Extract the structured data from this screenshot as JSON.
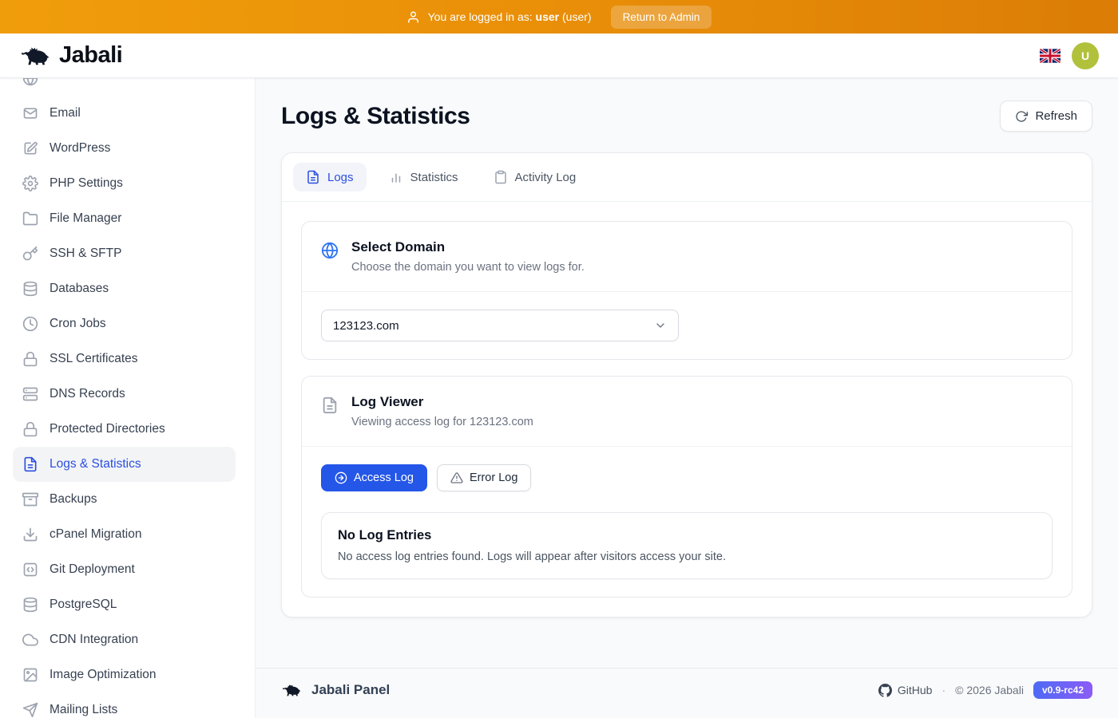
{
  "topbar": {
    "prefix": "You are logged in as:",
    "username": "user",
    "role": "(user)",
    "return_label": "Return to Admin",
    "user_icon": "user",
    "bg_gradient": [
      "#f09d0b",
      "#db7d06"
    ]
  },
  "header": {
    "brand": "Jabali",
    "logo_icon": "boar",
    "language_flag_icon": "uk-flag",
    "avatar_letter": "U",
    "avatar_color": "#b2c13c"
  },
  "sidebar": {
    "items": [
      {
        "id": "partial-top",
        "icon": "globe",
        "label": "",
        "partial": true
      },
      {
        "id": "email",
        "icon": "mail",
        "label": "Email"
      },
      {
        "id": "wordpress",
        "icon": "edit",
        "label": "WordPress"
      },
      {
        "id": "php-settings",
        "icon": "settings",
        "label": "PHP Settings"
      },
      {
        "id": "file-manager",
        "icon": "folder",
        "label": "File Manager"
      },
      {
        "id": "ssh-sftp",
        "icon": "key",
        "label": "SSH & SFTP"
      },
      {
        "id": "databases",
        "icon": "database",
        "label": "Databases"
      },
      {
        "id": "cron-jobs",
        "icon": "clock",
        "label": "Cron Jobs"
      },
      {
        "id": "ssl-certificates",
        "icon": "lock",
        "label": "SSL Certificates"
      },
      {
        "id": "dns-records",
        "icon": "server",
        "label": "DNS Records"
      },
      {
        "id": "protected-directories",
        "icon": "lock",
        "label": "Protected Directories"
      },
      {
        "id": "logs-statistics",
        "icon": "file-text",
        "label": "Logs & Statistics",
        "active": true
      },
      {
        "id": "backups",
        "icon": "archive",
        "label": "Backups"
      },
      {
        "id": "cpanel-migration",
        "icon": "download",
        "label": "cPanel Migration"
      },
      {
        "id": "git-deployment",
        "icon": "code",
        "label": "Git Deployment"
      },
      {
        "id": "postgresql",
        "icon": "database",
        "label": "PostgreSQL"
      },
      {
        "id": "cdn-integration",
        "icon": "cloud",
        "label": "CDN Integration"
      },
      {
        "id": "image-optimization",
        "icon": "image",
        "label": "Image Optimization"
      },
      {
        "id": "mailing-lists",
        "icon": "send",
        "label": "Mailing Lists"
      }
    ],
    "active_color": "#2b4fe0"
  },
  "page": {
    "title": "Logs & Statistics",
    "refresh_label": "Refresh",
    "refresh_icon": "refresh"
  },
  "tabs": [
    {
      "id": "logs",
      "icon": "file-text",
      "label": "Logs",
      "active": true
    },
    {
      "id": "statistics",
      "icon": "bar-chart",
      "label": "Statistics"
    },
    {
      "id": "activity-log",
      "icon": "clipboard",
      "label": "Activity Log"
    }
  ],
  "select_domain": {
    "icon": "globe",
    "icon_color": "#2e74f2",
    "title": "Select Domain",
    "subtitle": "Choose the domain you want to view logs for.",
    "selected_value": "123123.com"
  },
  "log_viewer": {
    "icon": "file-text",
    "title": "Log Viewer",
    "subtitle": "Viewing access log for 123123.com",
    "access_label": "Access Log",
    "access_icon": "arrow-right-circle",
    "access_color": "#2456e8",
    "error_label": "Error Log",
    "error_icon": "alert-triangle",
    "empty_title": "No Log Entries",
    "empty_message": "No access log entries found. Logs will appear after visitors access your site."
  },
  "footer": {
    "brand": "Jabali Panel",
    "logo_icon": "boar",
    "github_icon": "github",
    "github_label": "GitHub",
    "separator": "·",
    "copyright": "© 2026 Jabali",
    "version": "v0.9-rc42",
    "version_gradient": [
      "#4e6af5",
      "#8b5cf6"
    ]
  }
}
